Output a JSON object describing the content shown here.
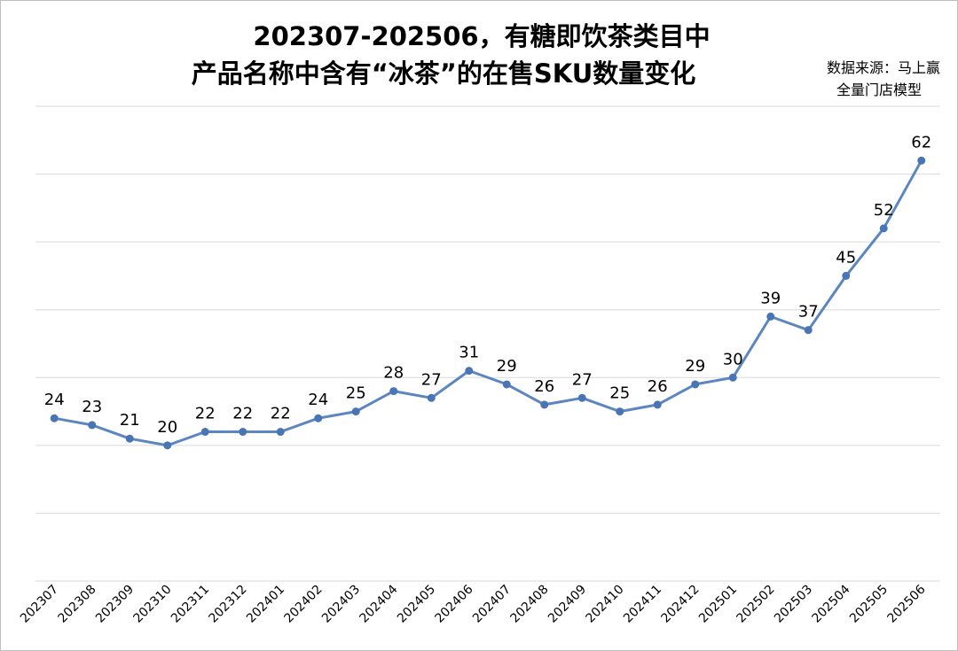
{
  "chart_data": {
    "type": "line",
    "title_lines": [
      "202307-202506，有糖即饮茶类目中",
      "产品名称中含有“冰茶”的在售SKU数量变化"
    ],
    "source_lines": [
      "数据来源：马上赢",
      "全量门店模型"
    ],
    "categories": [
      "202307",
      "202308",
      "202309",
      "202310",
      "202311",
      "202312",
      "202401",
      "202402",
      "202403",
      "202404",
      "202405",
      "202406",
      "202407",
      "202408",
      "202409",
      "202410",
      "202411",
      "202412",
      "202501",
      "202502",
      "202503",
      "202504",
      "202505",
      "202506"
    ],
    "series": [
      {
        "values": [
          24,
          23,
          21,
          20,
          22,
          22,
          22,
          24,
          25,
          28,
          27,
          31,
          29,
          26,
          27,
          25,
          26,
          29,
          30,
          39,
          37,
          45,
          52,
          62
        ]
      }
    ],
    "ylim": [
      0,
      70
    ],
    "y_gridlines": [
      0,
      10,
      20,
      30,
      40,
      50,
      60,
      70
    ],
    "grid": true,
    "legend": "none",
    "line_color": "#5b86c0",
    "marker_color": "#4a75b5",
    "grid_color": "#d9d9d9"
  }
}
